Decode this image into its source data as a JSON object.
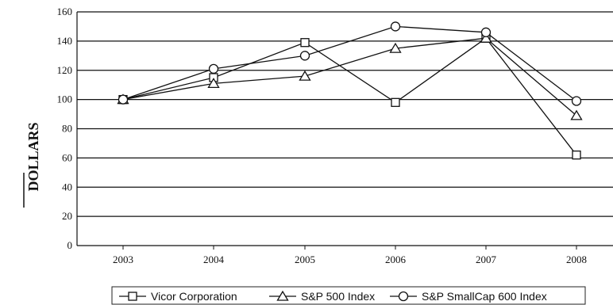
{
  "chart_data": {
    "type": "line",
    "title": "",
    "xlabel": "",
    "ylabel": "DOLLARS",
    "ylim": [
      0,
      160
    ],
    "yticks": [
      0,
      20,
      40,
      60,
      80,
      100,
      120,
      140,
      160
    ],
    "grid": "horizontal",
    "legend_position": "bottom",
    "categories": [
      "2003",
      "2004",
      "2005",
      "2006",
      "2007",
      "2008"
    ],
    "series": [
      {
        "name": "Vicor Corporation",
        "marker": "square",
        "values": [
          100,
          115,
          139,
          98,
          142,
          62
        ]
      },
      {
        "name": "S&P 500 Index",
        "marker": "triangle",
        "values": [
          100,
          111,
          116,
          135,
          142,
          89
        ]
      },
      {
        "name": "S&P SmallCap 600 Index",
        "marker": "circle",
        "values": [
          100,
          121,
          130,
          150,
          146,
          99
        ]
      }
    ]
  }
}
